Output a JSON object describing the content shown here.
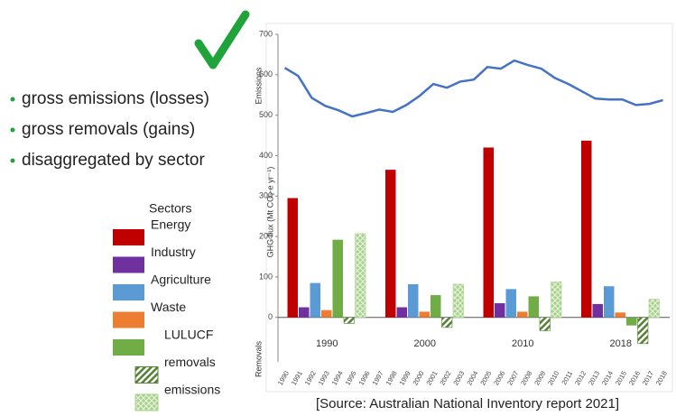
{
  "bullets": [
    "gross emissions (losses)",
    "gross removals (gains)",
    "disaggregated by sector"
  ],
  "legend_title": "Sectors",
  "source": "[Source: Australian National Inventory report 2021]",
  "chart_data": {
    "type": "bar",
    "ylabel": "GHG flux (Mt CO₂-e yr⁻¹)",
    "upper_label": "Emissions",
    "lower_label": "Removals",
    "ylim": [
      -110,
      700
    ],
    "yticks": [
      0,
      100,
      200,
      300,
      400,
      500,
      600,
      700
    ],
    "categories": [
      "1990",
      "2000",
      "2010",
      "2018"
    ],
    "series": [
      {
        "name": "Energy",
        "color": "#c00000",
        "values": [
          295,
          365,
          420,
          437
        ]
      },
      {
        "name": "Industry",
        "color": "#7030a0",
        "values": [
          25,
          25,
          35,
          33
        ]
      },
      {
        "name": "Agriculture",
        "color": "#5b9bd5",
        "values": [
          85,
          82,
          70,
          77
        ]
      },
      {
        "name": "Waste",
        "color": "#ed7d31",
        "values": [
          18,
          14,
          14,
          12
        ]
      },
      {
        "name": "LULUCF",
        "color": "#70ad47",
        "values": [
          192,
          55,
          52,
          -20
        ]
      },
      {
        "name": "removals",
        "color": "#548235",
        "pattern": "hatch",
        "values": [
          -15,
          -25,
          -33,
          -65
        ]
      },
      {
        "name": "emissions",
        "color": "#a9d18e",
        "pattern": "crosshatch",
        "values": [
          207,
          82,
          88,
          45
        ]
      }
    ],
    "line": {
      "type": "line",
      "color": "#4472c4",
      "xlim": [
        1989.5,
        2018.5
      ],
      "x": [
        1990,
        1991,
        1992,
        1993,
        1994,
        1995,
        1996,
        1997,
        1998,
        1999,
        2000,
        2001,
        2002,
        2003,
        2004,
        2005,
        2006,
        2007,
        2008,
        2009,
        2010,
        2011,
        2012,
        2013,
        2014,
        2015,
        2016,
        2017,
        2018
      ],
      "values": [
        617,
        597,
        543,
        523,
        512,
        497,
        505,
        514,
        508,
        525,
        548,
        577,
        568,
        583,
        588,
        619,
        615,
        635,
        624,
        615,
        592,
        577,
        559,
        541,
        539,
        539,
        525,
        528,
        537
      ]
    }
  }
}
